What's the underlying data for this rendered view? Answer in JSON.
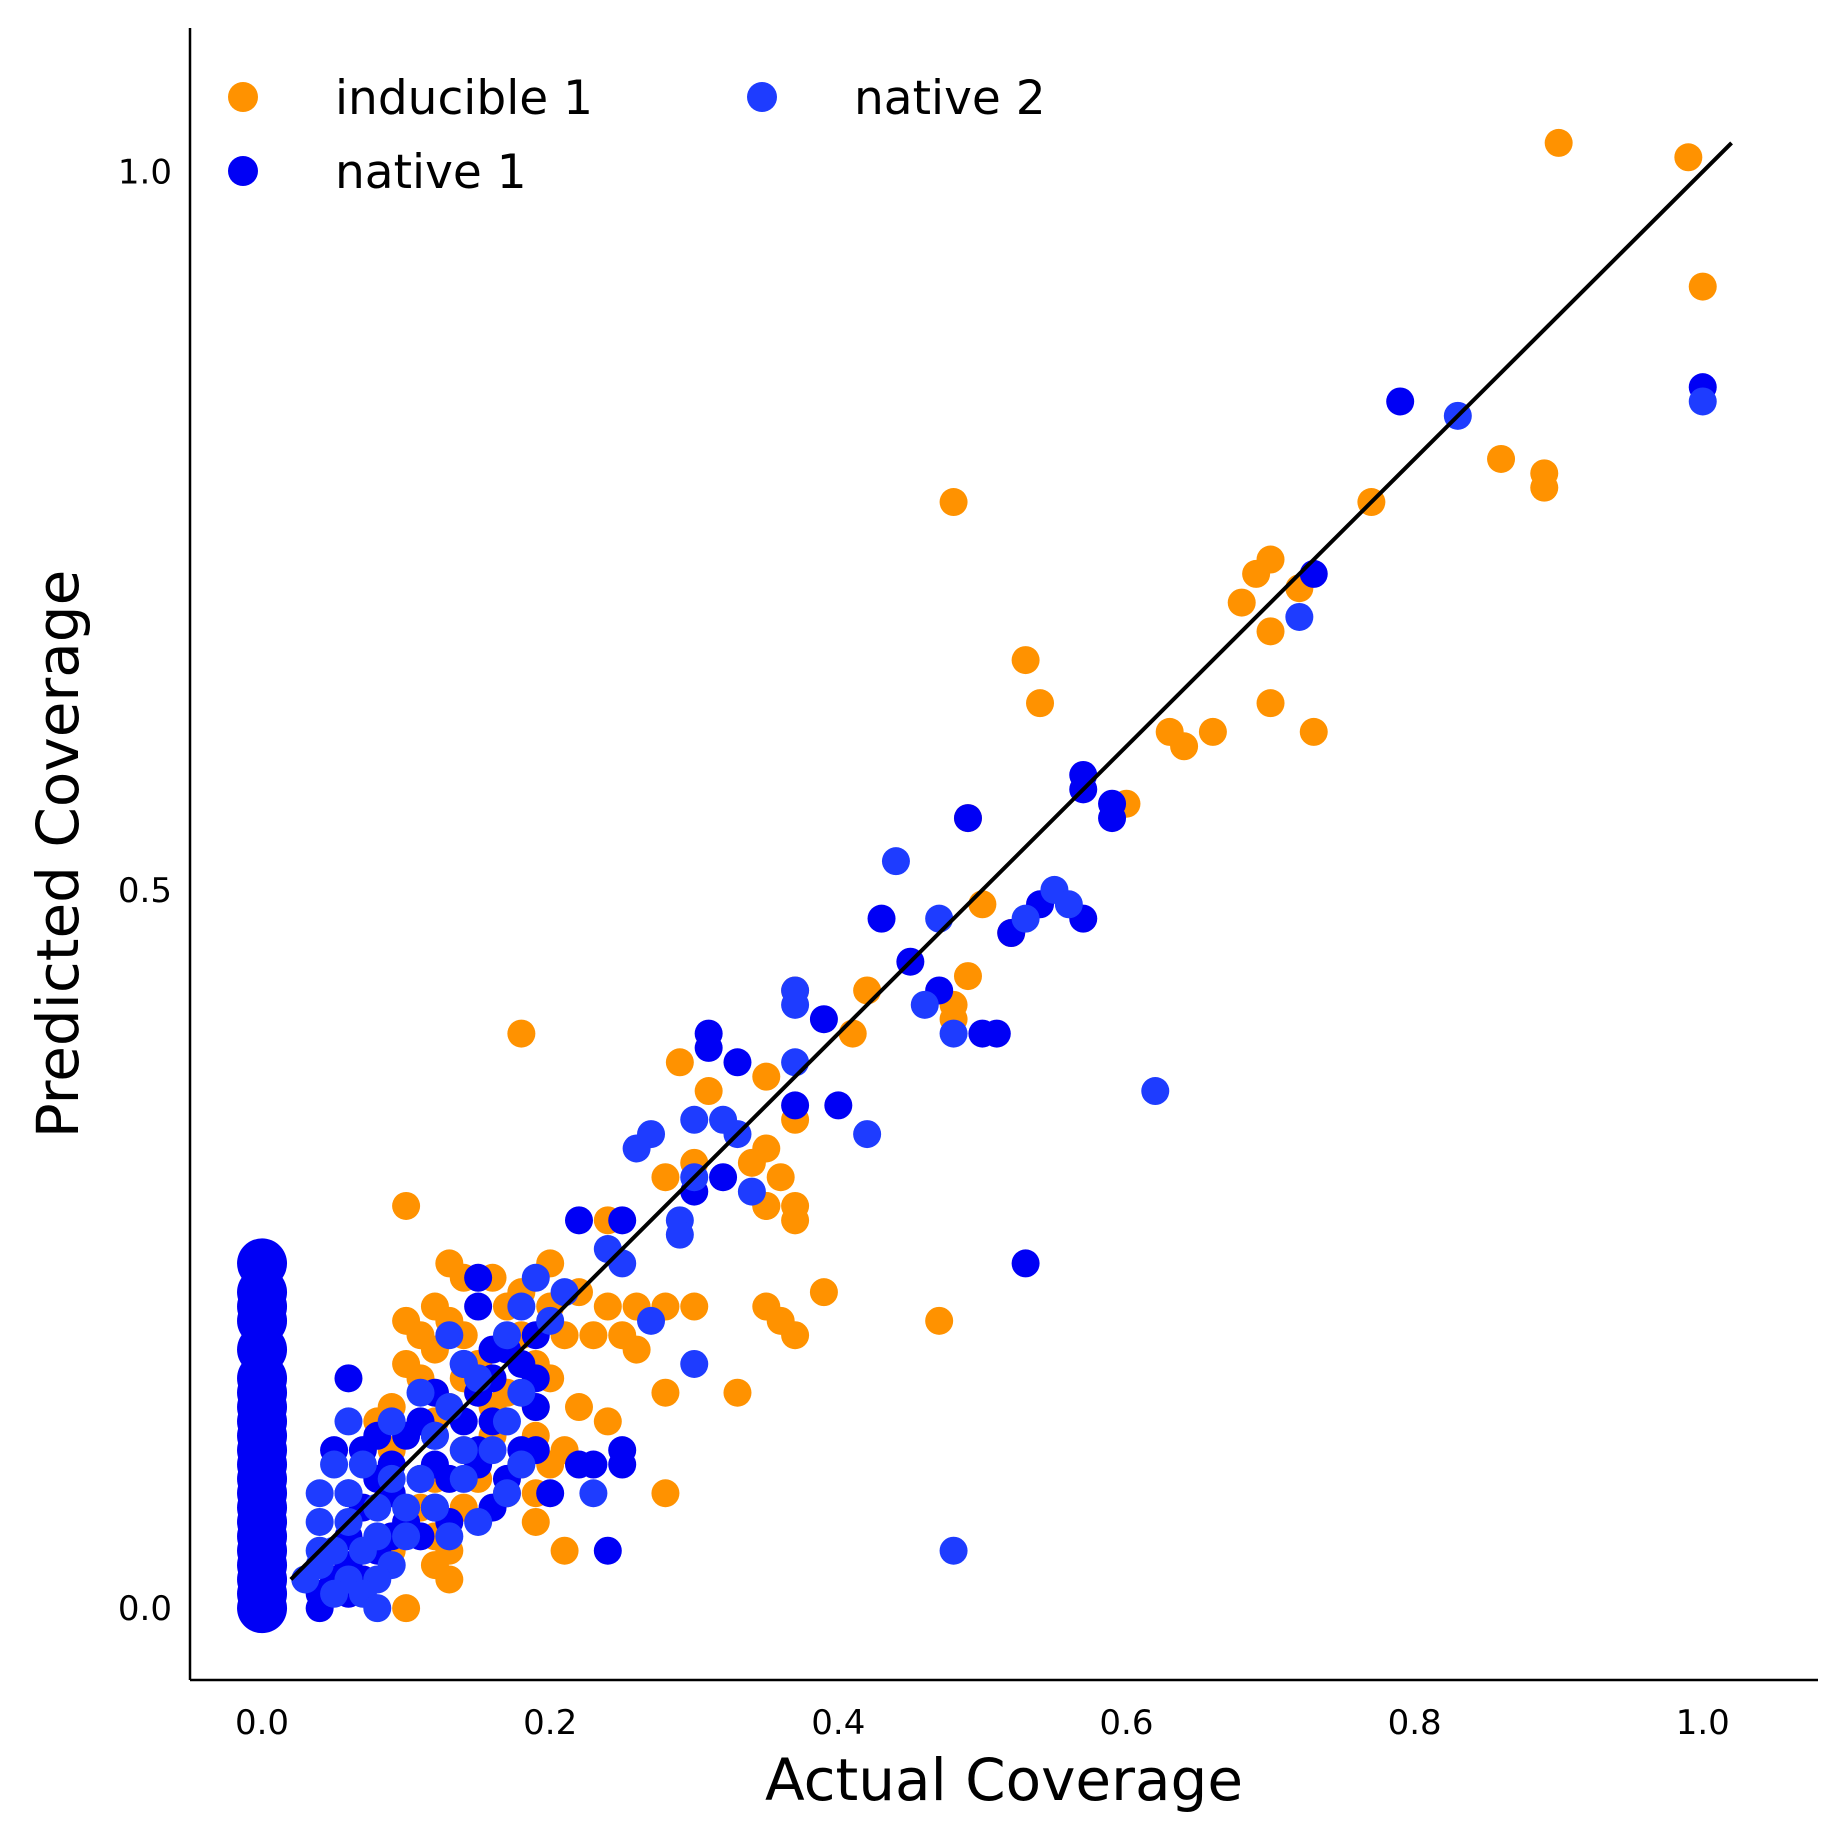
{
  "chart_data": {
    "type": "scatter",
    "xlabel": "Actual Coverage",
    "ylabel": "Predicted Coverage",
    "xlim": [
      -0.05,
      1.08
    ],
    "ylim": [
      -0.05,
      1.1
    ],
    "x_ticks": [
      0.0,
      0.2,
      0.4,
      0.6,
      0.8,
      1.0
    ],
    "x_tick_labels": [
      "0.0",
      "0.2",
      "0.4",
      "0.6",
      "0.8",
      "1.0"
    ],
    "y_ticks": [
      0.0,
      0.5,
      1.0
    ],
    "y_tick_labels": [
      "0.0",
      "0.5",
      "1.0"
    ],
    "legend_position": "upper-left",
    "reference_line": {
      "x": [
        0.02,
        1.02
      ],
      "y": [
        0.02,
        1.02
      ],
      "color": "#000000"
    },
    "series": [
      {
        "name": "inducible 1",
        "color": "#FF9200",
        "points": [
          [
            0.9,
            1.02
          ],
          [
            0.99,
            1.01
          ],
          [
            1.0,
            0.92
          ],
          [
            0.86,
            0.8
          ],
          [
            0.89,
            0.79
          ],
          [
            0.89,
            0.78
          ],
          [
            0.77,
            0.77
          ],
          [
            0.48,
            0.77
          ],
          [
            0.7,
            0.73
          ],
          [
            0.69,
            0.72
          ],
          [
            0.72,
            0.71
          ],
          [
            0.68,
            0.7
          ],
          [
            0.7,
            0.68
          ],
          [
            0.53,
            0.66
          ],
          [
            0.54,
            0.63
          ],
          [
            0.7,
            0.63
          ],
          [
            0.73,
            0.61
          ],
          [
            0.63,
            0.61
          ],
          [
            0.64,
            0.6
          ],
          [
            0.66,
            0.61
          ],
          [
            0.6,
            0.56
          ],
          [
            0.49,
            0.55
          ],
          [
            0.5,
            0.49
          ],
          [
            0.52,
            0.47
          ],
          [
            0.37,
            0.43
          ],
          [
            0.42,
            0.43
          ],
          [
            0.49,
            0.44
          ],
          [
            0.48,
            0.42
          ],
          [
            0.48,
            0.41
          ],
          [
            0.41,
            0.4
          ],
          [
            0.18,
            0.4
          ],
          [
            0.29,
            0.38
          ],
          [
            0.35,
            0.37
          ],
          [
            0.31,
            0.36
          ],
          [
            0.37,
            0.34
          ],
          [
            0.35,
            0.32
          ],
          [
            0.34,
            0.31
          ],
          [
            0.36,
            0.3
          ],
          [
            0.3,
            0.31
          ],
          [
            0.28,
            0.3
          ],
          [
            0.35,
            0.28
          ],
          [
            0.37,
            0.28
          ],
          [
            0.35,
            0.28
          ],
          [
            0.37,
            0.27
          ],
          [
            0.1,
            0.28
          ],
          [
            0.24,
            0.27
          ],
          [
            0.2,
            0.24
          ],
          [
            0.13,
            0.24
          ],
          [
            0.16,
            0.23
          ],
          [
            0.14,
            0.23
          ],
          [
            0.18,
            0.22
          ],
          [
            0.22,
            0.22
          ],
          [
            0.12,
            0.21
          ],
          [
            0.17,
            0.21
          ],
          [
            0.2,
            0.21
          ],
          [
            0.24,
            0.21
          ],
          [
            0.26,
            0.21
          ],
          [
            0.28,
            0.21
          ],
          [
            0.3,
            0.21
          ],
          [
            0.35,
            0.21
          ],
          [
            0.39,
            0.22
          ],
          [
            0.47,
            0.2
          ],
          [
            0.36,
            0.2
          ],
          [
            0.37,
            0.19
          ],
          [
            0.1,
            0.2
          ],
          [
            0.13,
            0.2
          ],
          [
            0.11,
            0.19
          ],
          [
            0.14,
            0.19
          ],
          [
            0.18,
            0.19
          ],
          [
            0.21,
            0.19
          ],
          [
            0.23,
            0.19
          ],
          [
            0.25,
            0.19
          ],
          [
            0.26,
            0.18
          ],
          [
            0.12,
            0.18
          ],
          [
            0.15,
            0.17
          ],
          [
            0.19,
            0.17
          ],
          [
            0.1,
            0.17
          ],
          [
            0.11,
            0.16
          ],
          [
            0.14,
            0.16
          ],
          [
            0.2,
            0.16
          ],
          [
            0.12,
            0.15
          ],
          [
            0.15,
            0.15
          ],
          [
            0.17,
            0.15
          ],
          [
            0.09,
            0.14
          ],
          [
            0.13,
            0.14
          ],
          [
            0.16,
            0.14
          ],
          [
            0.19,
            0.14
          ],
          [
            0.22,
            0.14
          ],
          [
            0.24,
            0.13
          ],
          [
            0.28,
            0.15
          ],
          [
            0.33,
            0.15
          ],
          [
            0.08,
            0.13
          ],
          [
            0.12,
            0.13
          ],
          [
            0.16,
            0.12
          ],
          [
            0.19,
            0.12
          ],
          [
            0.21,
            0.11
          ],
          [
            0.09,
            0.11
          ],
          [
            0.14,
            0.11
          ],
          [
            0.18,
            0.1
          ],
          [
            0.2,
            0.1
          ],
          [
            0.12,
            0.09
          ],
          [
            0.15,
            0.09
          ],
          [
            0.17,
            0.08
          ],
          [
            0.19,
            0.08
          ],
          [
            0.28,
            0.08
          ],
          [
            0.11,
            0.07
          ],
          [
            0.14,
            0.07
          ],
          [
            0.19,
            0.06
          ],
          [
            0.21,
            0.04
          ],
          [
            0.12,
            0.05
          ],
          [
            0.13,
            0.04
          ],
          [
            0.12,
            0.03
          ],
          [
            0.13,
            0.02
          ],
          [
            0.1,
            0.0
          ],
          [
            0.07,
            0.02
          ],
          [
            0.09,
            0.04
          ]
        ]
      },
      {
        "name": "native 1",
        "color": "#0000F5",
        "points": [
          [
            1.0,
            0.85
          ],
          [
            0.79,
            0.84
          ],
          [
            0.73,
            0.72
          ],
          [
            0.57,
            0.58
          ],
          [
            0.57,
            0.57
          ],
          [
            0.59,
            0.56
          ],
          [
            0.49,
            0.55
          ],
          [
            0.59,
            0.55
          ],
          [
            0.54,
            0.49
          ],
          [
            0.57,
            0.48
          ],
          [
            0.43,
            0.48
          ],
          [
            0.52,
            0.47
          ],
          [
            0.45,
            0.45
          ],
          [
            0.47,
            0.43
          ],
          [
            0.5,
            0.4
          ],
          [
            0.51,
            0.4
          ],
          [
            0.39,
            0.41
          ],
          [
            0.31,
            0.4
          ],
          [
            0.31,
            0.39
          ],
          [
            0.33,
            0.38
          ],
          [
            0.37,
            0.35
          ],
          [
            0.4,
            0.35
          ],
          [
            0.32,
            0.3
          ],
          [
            0.3,
            0.29
          ],
          [
            0.22,
            0.27
          ],
          [
            0.25,
            0.27
          ],
          [
            0.53,
            0.24
          ],
          [
            0.15,
            0.23
          ],
          [
            0.15,
            0.21
          ],
          [
            0.19,
            0.19
          ],
          [
            0.16,
            0.18
          ],
          [
            0.17,
            0.18
          ],
          [
            0.14,
            0.17
          ],
          [
            0.18,
            0.17
          ],
          [
            0.16,
            0.16
          ],
          [
            0.19,
            0.16
          ],
          [
            0.12,
            0.15
          ],
          [
            0.15,
            0.15
          ],
          [
            0.06,
            0.16
          ],
          [
            0.19,
            0.14
          ],
          [
            0.11,
            0.13
          ],
          [
            0.14,
            0.13
          ],
          [
            0.16,
            0.13
          ],
          [
            0.08,
            0.12
          ],
          [
            0.1,
            0.12
          ],
          [
            0.12,
            0.12
          ],
          [
            0.15,
            0.11
          ],
          [
            0.18,
            0.11
          ],
          [
            0.19,
            0.11
          ],
          [
            0.05,
            0.11
          ],
          [
            0.07,
            0.11
          ],
          [
            0.09,
            0.1
          ],
          [
            0.12,
            0.1
          ],
          [
            0.15,
            0.1
          ],
          [
            0.22,
            0.1
          ],
          [
            0.23,
            0.1
          ],
          [
            0.25,
            0.11
          ],
          [
            0.25,
            0.1
          ],
          [
            0.17,
            0.09
          ],
          [
            0.13,
            0.09
          ],
          [
            0.11,
            0.09
          ],
          [
            0.08,
            0.09
          ],
          [
            0.06,
            0.08
          ],
          [
            0.09,
            0.08
          ],
          [
            0.12,
            0.07
          ],
          [
            0.16,
            0.07
          ],
          [
            0.2,
            0.08
          ],
          [
            0.07,
            0.07
          ],
          [
            0.1,
            0.06
          ],
          [
            0.13,
            0.06
          ],
          [
            0.06,
            0.05
          ],
          [
            0.09,
            0.05
          ],
          [
            0.11,
            0.05
          ],
          [
            0.05,
            0.04
          ],
          [
            0.08,
            0.04
          ],
          [
            0.24,
            0.04
          ],
          [
            0.06,
            0.03
          ],
          [
            0.07,
            0.02
          ],
          [
            0.04,
            0.01
          ],
          [
            0.05,
            0.02
          ],
          [
            0.04,
            0.0
          ],
          [
            0.06,
            0.01
          ],
          [
            0.0,
            0.24
          ],
          [
            0.0,
            0.22
          ],
          [
            0.0,
            0.21
          ],
          [
            0.0,
            0.2
          ],
          [
            0.0,
            0.18
          ],
          [
            0.0,
            0.16
          ],
          [
            0.0,
            0.15
          ],
          [
            0.0,
            0.14
          ],
          [
            0.0,
            0.13
          ],
          [
            0.0,
            0.12
          ],
          [
            0.0,
            0.11
          ],
          [
            0.0,
            0.1
          ],
          [
            0.0,
            0.09
          ],
          [
            0.0,
            0.08
          ],
          [
            0.0,
            0.07
          ],
          [
            0.0,
            0.06
          ],
          [
            0.0,
            0.05
          ],
          [
            0.0,
            0.04
          ],
          [
            0.0,
            0.03
          ],
          [
            0.0,
            0.02
          ],
          [
            0.0,
            0.01
          ],
          [
            0.0,
            0.0
          ]
        ]
      },
      {
        "name": "native 2",
        "color": "#1E3CFF",
        "points": [
          [
            1.0,
            0.84
          ],
          [
            0.83,
            0.83
          ],
          [
            0.72,
            0.69
          ],
          [
            0.44,
            0.52
          ],
          [
            0.47,
            0.48
          ],
          [
            0.53,
            0.48
          ],
          [
            0.55,
            0.5
          ],
          [
            0.56,
            0.49
          ],
          [
            0.37,
            0.43
          ],
          [
            0.37,
            0.42
          ],
          [
            0.46,
            0.42
          ],
          [
            0.48,
            0.4
          ],
          [
            0.37,
            0.38
          ],
          [
            0.62,
            0.36
          ],
          [
            0.3,
            0.34
          ],
          [
            0.32,
            0.34
          ],
          [
            0.33,
            0.33
          ],
          [
            0.42,
            0.33
          ],
          [
            0.26,
            0.32
          ],
          [
            0.27,
            0.33
          ],
          [
            0.3,
            0.3
          ],
          [
            0.34,
            0.29
          ],
          [
            0.29,
            0.27
          ],
          [
            0.29,
            0.26
          ],
          [
            0.24,
            0.25
          ],
          [
            0.25,
            0.24
          ],
          [
            0.19,
            0.23
          ],
          [
            0.21,
            0.22
          ],
          [
            0.18,
            0.21
          ],
          [
            0.2,
            0.2
          ],
          [
            0.27,
            0.2
          ],
          [
            0.13,
            0.19
          ],
          [
            0.17,
            0.19
          ],
          [
            0.3,
            0.17
          ],
          [
            0.14,
            0.17
          ],
          [
            0.15,
            0.16
          ],
          [
            0.18,
            0.15
          ],
          [
            0.11,
            0.15
          ],
          [
            0.13,
            0.14
          ],
          [
            0.17,
            0.13
          ],
          [
            0.06,
            0.13
          ],
          [
            0.09,
            0.13
          ],
          [
            0.12,
            0.12
          ],
          [
            0.14,
            0.11
          ],
          [
            0.16,
            0.11
          ],
          [
            0.18,
            0.1
          ],
          [
            0.05,
            0.1
          ],
          [
            0.07,
            0.1
          ],
          [
            0.09,
            0.09
          ],
          [
            0.11,
            0.09
          ],
          [
            0.14,
            0.09
          ],
          [
            0.17,
            0.08
          ],
          [
            0.23,
            0.08
          ],
          [
            0.04,
            0.08
          ],
          [
            0.06,
            0.08
          ],
          [
            0.08,
            0.07
          ],
          [
            0.1,
            0.07
          ],
          [
            0.12,
            0.07
          ],
          [
            0.15,
            0.06
          ],
          [
            0.04,
            0.06
          ],
          [
            0.06,
            0.06
          ],
          [
            0.08,
            0.05
          ],
          [
            0.1,
            0.05
          ],
          [
            0.13,
            0.05
          ],
          [
            0.04,
            0.04
          ],
          [
            0.05,
            0.04
          ],
          [
            0.07,
            0.04
          ],
          [
            0.09,
            0.03
          ],
          [
            0.04,
            0.03
          ],
          [
            0.06,
            0.02
          ],
          [
            0.08,
            0.02
          ],
          [
            0.03,
            0.02
          ],
          [
            0.05,
            0.01
          ],
          [
            0.07,
            0.01
          ],
          [
            0.08,
            0.0
          ],
          [
            0.48,
            0.04
          ]
        ]
      }
    ]
  }
}
